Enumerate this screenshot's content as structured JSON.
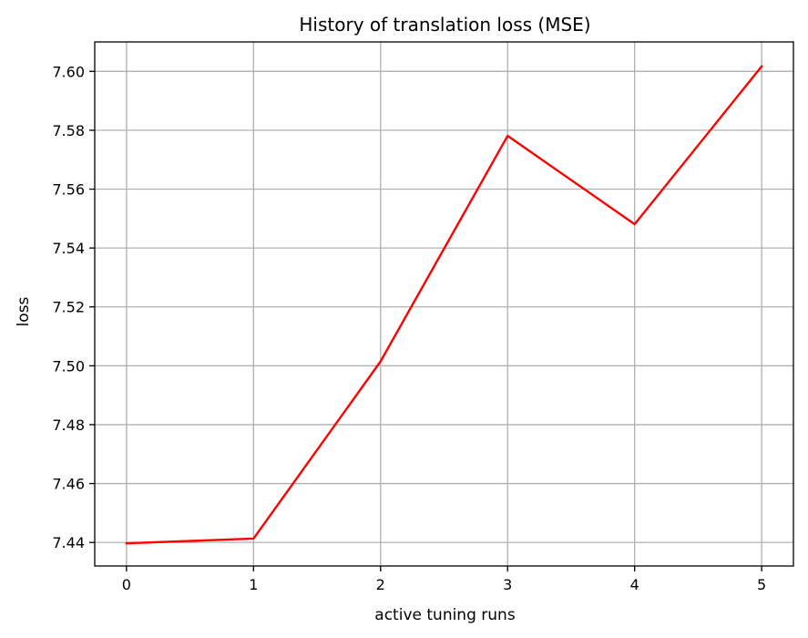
{
  "chart_data": {
    "type": "line",
    "title": "History of translation loss (MSE)",
    "xlabel": "active tuning runs",
    "ylabel": "loss",
    "xlim": [
      -0.25,
      5.25
    ],
    "ylim": [
      7.432,
      7.61
    ],
    "x_ticks": [
      0,
      1,
      2,
      3,
      4,
      5
    ],
    "x_tick_labels": [
      "0",
      "1",
      "2",
      "3",
      "4",
      "5"
    ],
    "y_ticks": [
      7.44,
      7.46,
      7.48,
      7.5,
      7.52,
      7.54,
      7.56,
      7.58,
      7.6
    ],
    "y_tick_labels": [
      "7.44",
      "7.46",
      "7.48",
      "7.50",
      "7.52",
      "7.54",
      "7.56",
      "7.58",
      "7.60"
    ],
    "grid": true,
    "legend": "none",
    "series": [
      {
        "color": "#ff0000",
        "x": [
          0,
          1,
          2,
          3,
          4,
          5
        ],
        "values": [
          7.4397,
          7.4413,
          7.5015,
          7.5781,
          7.5481,
          7.6017
        ]
      }
    ]
  }
}
